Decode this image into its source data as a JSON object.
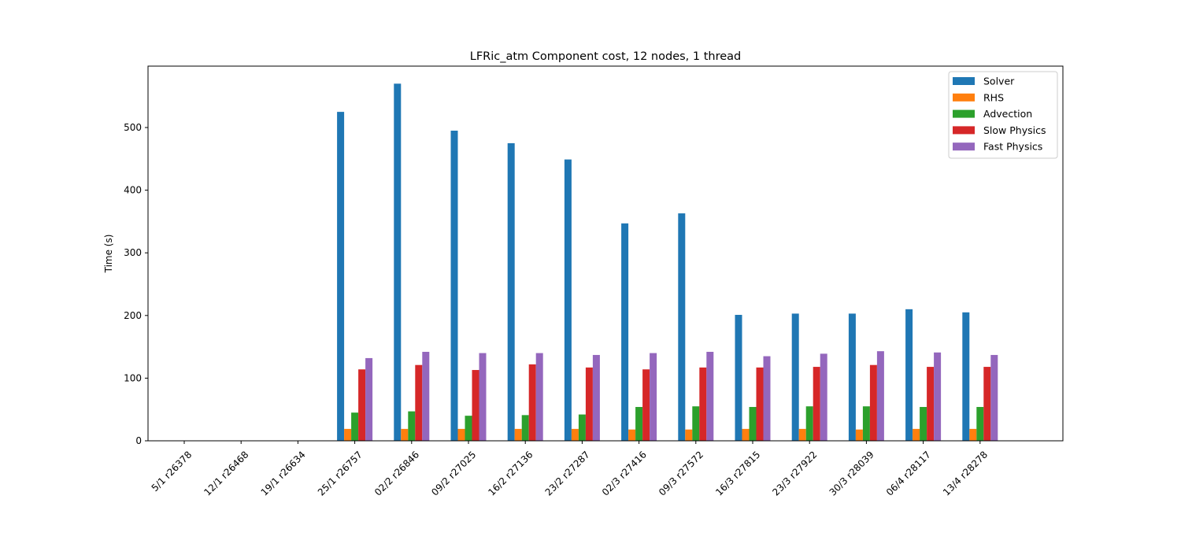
{
  "chart_data": {
    "type": "bar",
    "title": "LFRic_atm Component cost, 12 nodes, 1 thread",
    "xlabel": "",
    "ylabel": "Time (s)",
    "ylim": [
      0,
      598
    ],
    "yticks": [
      0,
      100,
      200,
      300,
      400,
      500
    ],
    "legend_position": "top-right",
    "grid": false,
    "categories": [
      "5/1 r26378",
      "12/1 r26468",
      "19/1 r26634",
      "25/1 r26757",
      "02/2 r26846",
      "09/2 r27025",
      "16/2 r27136",
      "23/2 r27287",
      "02/3 r27416",
      "09/3 r27572",
      "16/3 r27815",
      "23/3 r27922",
      "30/3 r28039",
      "06/4 r28117",
      "13/4 r28278"
    ],
    "series": [
      {
        "name": "Solver",
        "color": "#1f77b4",
        "values": [
          0,
          0,
          0,
          525,
          570,
          495,
          475,
          449,
          347,
          363,
          201,
          203,
          203,
          210,
          205
        ]
      },
      {
        "name": "RHS",
        "color": "#ff7f0e",
        "values": [
          0,
          0,
          0,
          19,
          19,
          19,
          19,
          19,
          18,
          18,
          19,
          19,
          18,
          19,
          19
        ]
      },
      {
        "name": "Advection",
        "color": "#2ca02c",
        "values": [
          0,
          0,
          0,
          45,
          47,
          40,
          41,
          42,
          54,
          55,
          54,
          55,
          55,
          54,
          54
        ]
      },
      {
        "name": "Slow Physics",
        "color": "#d62728",
        "values": [
          0,
          0,
          0,
          114,
          121,
          113,
          122,
          117,
          114,
          117,
          117,
          118,
          121,
          118,
          118
        ]
      },
      {
        "name": "Fast Physics",
        "color": "#9467bd",
        "values": [
          0,
          0,
          0,
          132,
          142,
          140,
          140,
          137,
          140,
          142,
          135,
          139,
          143,
          141,
          137
        ]
      }
    ]
  }
}
